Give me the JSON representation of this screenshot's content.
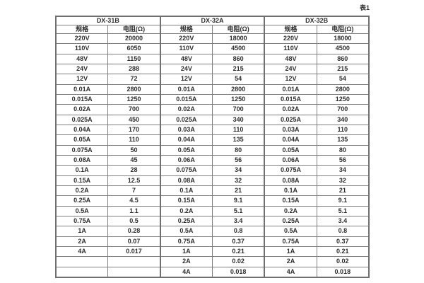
{
  "caption": "表1",
  "colors": {
    "background": "#ffffff",
    "border": "#7f7f7f",
    "outer_border": "#6f6f6f",
    "text": "#2d2d2d"
  },
  "table": {
    "groups": [
      {
        "name": "DX-31B",
        "spec_header": "规格",
        "res_header": "电阻(Ω)"
      },
      {
        "name": "DX-32A",
        "spec_header": "规格",
        "res_header": "电阻(Ω)"
      },
      {
        "name": "DX-32B",
        "spec_header": "规格",
        "res_header": "电阻(Ω)"
      }
    ],
    "rows": [
      [
        "220V",
        "20000",
        "220V",
        "18000",
        "220V",
        "18000"
      ],
      [
        "110V",
        "6050",
        "110V",
        "4500",
        "110V",
        "4500"
      ],
      [
        "48V",
        "1150",
        "48V",
        "860",
        "48V",
        "860"
      ],
      [
        "24V",
        "288",
        "24V",
        "215",
        "24V",
        "215"
      ],
      [
        "12V",
        "72",
        "12V",
        "54",
        "12V",
        "54"
      ],
      [
        "0.01A",
        "2800",
        "0.01A",
        "2800",
        "0.01A",
        "2800"
      ],
      [
        "0.015A",
        "1250",
        "0.015A",
        "1250",
        "0.015A",
        "1250"
      ],
      [
        "0.02A",
        "700",
        "0.02A",
        "700",
        "0.02A",
        "700"
      ],
      [
        "0.025A",
        "450",
        "0.025A",
        "340",
        "0.025A",
        "340"
      ],
      [
        "0.04A",
        "170",
        "0.03A",
        "110",
        "0.03A",
        "110"
      ],
      [
        "0.05A",
        "110",
        "0.04A",
        "135",
        "0.04A",
        "135"
      ],
      [
        "0.075A",
        "50",
        "0.05A",
        "80",
        "0.05A",
        "80"
      ],
      [
        "0.08A",
        "45",
        "0.06A",
        "56",
        "0.06A",
        "56"
      ],
      [
        "0.1A",
        "28",
        "0.075A",
        "34",
        "0.075A",
        "34"
      ],
      [
        "0.15A",
        "12.5",
        "0.08A",
        "32",
        "0.08A",
        "32"
      ],
      [
        "0.2A",
        "7",
        "0.1A",
        "21",
        "0.1A",
        "21"
      ],
      [
        "0.25A",
        "4.5",
        "0.15A",
        "9.1",
        "0.15A",
        "9.1"
      ],
      [
        "0.5A",
        "1.1",
        "0.2A",
        "5.1",
        "0.2A",
        "5.1"
      ],
      [
        "0.75A",
        "0.5",
        "0.25A",
        "3.4",
        "0.25A",
        "3.4"
      ],
      [
        "1A",
        "0.28",
        "0.5A",
        "0.8",
        "0.5A",
        "0.8"
      ],
      [
        "2A",
        "0.07",
        "0.75A",
        "0.37",
        "0.75A",
        "0.37"
      ],
      [
        "4A",
        "0.017",
        "1A",
        "0.21",
        "1A",
        "0.21"
      ],
      [
        "",
        "",
        "2A",
        "0.02",
        "2A",
        "0.02"
      ],
      [
        "",
        "",
        "4A",
        "0.018",
        "4A",
        "0.018"
      ]
    ]
  }
}
